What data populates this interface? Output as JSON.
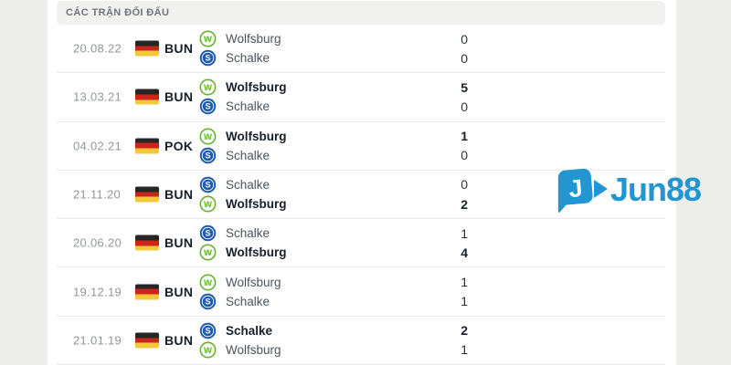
{
  "header": {
    "title": "CÁC TRẬN ĐỐI ĐẤU"
  },
  "watermark": {
    "text": "Jun88",
    "icon": "jun88-logo-icon"
  },
  "colors": {
    "accent_blue": "#2196d3",
    "wolfsburg_green": "#65b32e",
    "schalke_blue": "#1e5bb0",
    "flag_black": "#262626",
    "flag_red": "#cc2419",
    "flag_gold": "#f2c83f",
    "header_bg": "#f1f1ef",
    "page_bg": "#ededec",
    "divider": "#ebebeb"
  },
  "matches": [
    {
      "date": "20.08.22",
      "league": "BUN",
      "flag": "germany-flag",
      "teams": [
        {
          "name": "Wolfsburg",
          "logo": "wolfsburg",
          "score": "0",
          "winner": false
        },
        {
          "name": "Schalke",
          "logo": "schalke",
          "score": "0",
          "winner": false
        }
      ]
    },
    {
      "date": "13.03.21",
      "league": "BUN",
      "flag": "germany-flag",
      "teams": [
        {
          "name": "Wolfsburg",
          "logo": "wolfsburg",
          "score": "5",
          "winner": true
        },
        {
          "name": "Schalke",
          "logo": "schalke",
          "score": "0",
          "winner": false
        }
      ]
    },
    {
      "date": "04.02.21",
      "league": "POK",
      "flag": "germany-flag",
      "teams": [
        {
          "name": "Wolfsburg",
          "logo": "wolfsburg",
          "score": "1",
          "winner": true
        },
        {
          "name": "Schalke",
          "logo": "schalke",
          "score": "0",
          "winner": false
        }
      ]
    },
    {
      "date": "21.11.20",
      "league": "BUN",
      "flag": "germany-flag",
      "teams": [
        {
          "name": "Schalke",
          "logo": "schalke",
          "score": "0",
          "winner": false
        },
        {
          "name": "Wolfsburg",
          "logo": "wolfsburg",
          "score": "2",
          "winner": true
        }
      ]
    },
    {
      "date": "20.06.20",
      "league": "BUN",
      "flag": "germany-flag",
      "teams": [
        {
          "name": "Schalke",
          "logo": "schalke",
          "score": "1",
          "winner": false
        },
        {
          "name": "Wolfsburg",
          "logo": "wolfsburg",
          "score": "4",
          "winner": true
        }
      ]
    },
    {
      "date": "19.12.19",
      "league": "BUN",
      "flag": "germany-flag",
      "teams": [
        {
          "name": "Wolfsburg",
          "logo": "wolfsburg",
          "score": "1",
          "winner": false
        },
        {
          "name": "Schalke",
          "logo": "schalke",
          "score": "1",
          "winner": false
        }
      ]
    },
    {
      "date": "21.01.19",
      "league": "BUN",
      "flag": "germany-flag",
      "teams": [
        {
          "name": "Schalke",
          "logo": "schalke",
          "score": "2",
          "winner": true
        },
        {
          "name": "Wolfsburg",
          "logo": "wolfsburg",
          "score": "1",
          "winner": false
        }
      ]
    }
  ]
}
